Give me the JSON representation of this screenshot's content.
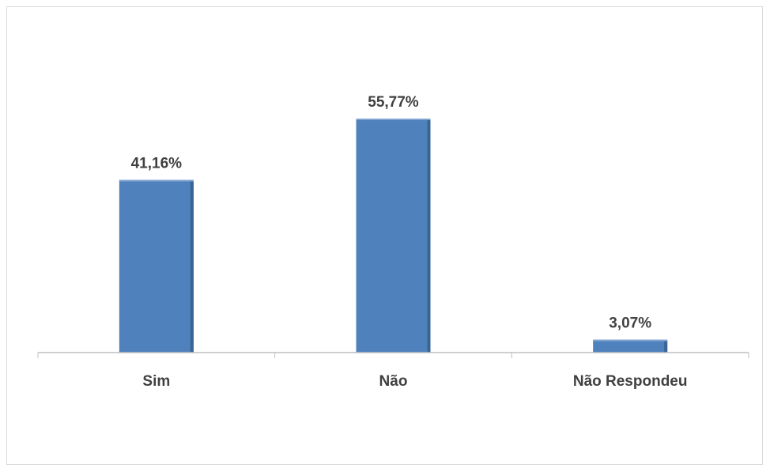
{
  "chart_data": {
    "type": "bar",
    "categories": [
      "Sim",
      "Não",
      "Não Respondeu"
    ],
    "values": [
      41.16,
      55.77,
      3.07
    ],
    "data_labels": [
      "41,16%",
      "55,77%",
      "3,07%"
    ],
    "title": "",
    "xlabel": "",
    "ylabel": "",
    "ylim": [
      0,
      70
    ],
    "grid": false,
    "legend": "none",
    "colors": {
      "bar": "#4f81bd",
      "bar_top": "#7fa3d1",
      "bar_side": "#3a6494",
      "axis": "#bfbfbf",
      "text": "#404040"
    }
  }
}
